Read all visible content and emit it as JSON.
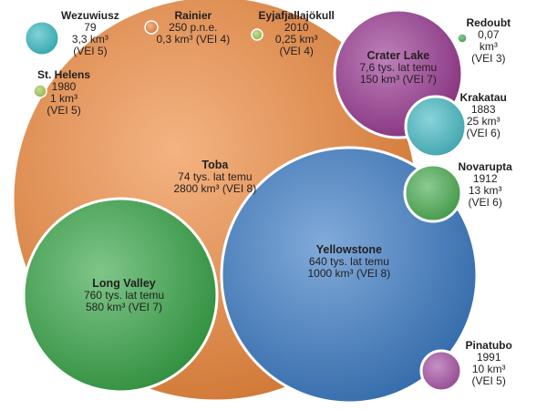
{
  "volcanoes": [
    {
      "id": "toba",
      "name": "Toba",
      "color": "#ee8a3e",
      "lines": [
        "74 tys. lat temu",
        "2800 km³ (VEI 8)"
      ]
    },
    {
      "id": "yellowstone",
      "name": "Yellowstone",
      "color": "#3d7cc4",
      "lines": [
        "640 tys. lat temu",
        "1000 km³ (VEI 8)"
      ]
    },
    {
      "id": "long-valley",
      "name": "Long Valley",
      "color": "#3aa54a",
      "lines": [
        "760 tys. lat temu",
        "580 km³ (VEI 7)"
      ]
    },
    {
      "id": "crater-lake",
      "name": "Crater Lake",
      "color": "#9a3c93",
      "lines": [
        "7,6 tys. lat temu",
        "150 km³ (VEI 7)"
      ]
    },
    {
      "id": "krakatau",
      "name": "Krakatau",
      "color": "#4bbcc6",
      "lines": [
        "1883",
        "25 km³",
        "(VEI 6)"
      ]
    },
    {
      "id": "novarupta",
      "name": "Novarupta",
      "color": "#4eae55",
      "lines": [
        "1912",
        "13 km³",
        "(VEI 6)"
      ]
    },
    {
      "id": "pinatubo",
      "name": "Pinatubo",
      "color": "#a855a5",
      "lines": [
        "1991",
        "10 km³",
        "(VEI 5)"
      ]
    },
    {
      "id": "wezuwiusz",
      "name": "Wezuwiusz",
      "color": "#3bbcc3",
      "lines": [
        "79",
        "3,3 km³",
        "(VEI 5)"
      ]
    },
    {
      "id": "rainier",
      "name": "Rainier",
      "color": "#ef8a45",
      "lines": [
        "250 p.n.e.",
        "0,3 km³ (VEI 4)"
      ]
    },
    {
      "id": "eyjafjallajokull",
      "name": "Eyjafjallajökull",
      "color": "#a4cc5a",
      "lines": [
        "2010",
        "0,25 km³",
        "(VEI 4)"
      ]
    },
    {
      "id": "redoubt",
      "name": "Redoubt",
      "color": "#4bae5c",
      "lines": [
        "0,07",
        "km³",
        "(VEI 3)"
      ]
    },
    {
      "id": "st-helens",
      "name": "St. Helens",
      "color": "#a4cc5a",
      "lines": [
        "1980",
        "1 km³",
        "(VEI 5)"
      ]
    }
  ]
}
